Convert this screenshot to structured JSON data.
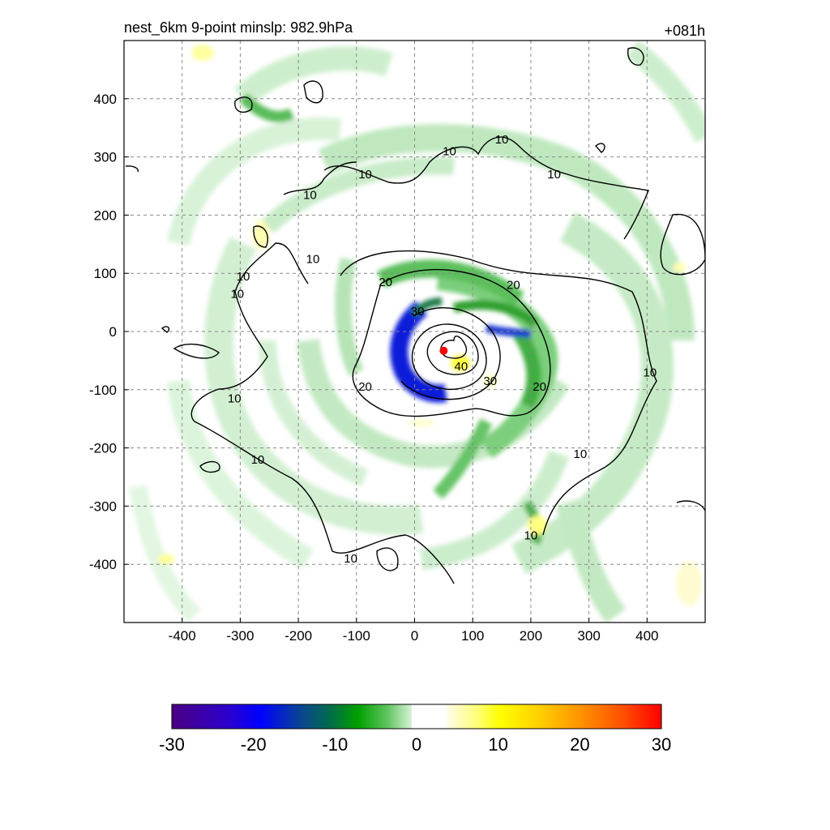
{
  "header": {
    "title": "nest_6km  9-point minslp: 982.9hPa",
    "forecast_hour": "+081h"
  },
  "chart_data": {
    "type": "heatmap",
    "title": "nest_6km  9-point minslp: 982.9hPa",
    "xlabel": "",
    "ylabel": "",
    "xlim": [
      -500,
      500
    ],
    "ylim": [
      -500,
      500
    ],
    "x_ticks": [
      -400,
      -300,
      -200,
      -100,
      0,
      100,
      200,
      300,
      400
    ],
    "y_ticks": [
      400,
      300,
      200,
      100,
      0,
      -100,
      -200,
      -300,
      -400
    ],
    "x_tick_labels": [
      "-400",
      "-300",
      "-200",
      "-100",
      "0",
      "100",
      "200",
      "300",
      "400"
    ],
    "y_tick_labels": [
      "400",
      "300",
      "200",
      "100",
      "0",
      "-100",
      "-200",
      "-300",
      "-400"
    ],
    "grid": true,
    "storm_center": [
      50,
      -33
    ],
    "contour_labels": [
      {
        "text": "10",
        "x": -180,
        "y": 235
      },
      {
        "text": "10",
        "x": -85,
        "y": 270
      },
      {
        "text": "10",
        "x": 60,
        "y": 310
      },
      {
        "text": "10",
        "x": 150,
        "y": 330
      },
      {
        "text": "10",
        "x": 240,
        "y": 270
      },
      {
        "text": "10",
        "x": -175,
        "y": 125
      },
      {
        "text": "10",
        "x": -295,
        "y": 95
      },
      {
        "text": "10",
        "x": -305,
        "y": 65
      },
      {
        "text": "10",
        "x": -310,
        "y": -115
      },
      {
        "text": "10",
        "x": -270,
        "y": -220
      },
      {
        "text": "10",
        "x": 405,
        "y": -70
      },
      {
        "text": "10",
        "x": 285,
        "y": -210
      },
      {
        "text": "10",
        "x": -110,
        "y": -390
      },
      {
        "text": "10",
        "x": 200,
        "y": -350
      },
      {
        "text": "20",
        "x": -50,
        "y": 85
      },
      {
        "text": "20",
        "x": 170,
        "y": 80
      },
      {
        "text": "20",
        "x": 215,
        "y": -95
      },
      {
        "text": "20",
        "x": -85,
        "y": -95
      },
      {
        "text": "30",
        "x": 5,
        "y": 35
      },
      {
        "text": "30",
        "x": 130,
        "y": -85
      },
      {
        "text": "40",
        "x": 80,
        "y": -60
      }
    ],
    "colorbar": {
      "min": -30,
      "max": 30,
      "tick_labels": [
        "-30",
        "-20",
        "-10",
        "0",
        "10",
        "20",
        "30"
      ],
      "colors": [
        "#4b0082",
        "#0000ff",
        "#006a4e",
        "#00a000",
        "#5fc45f",
        "#c0ebc0",
        "#ffffff",
        "#ffffc0",
        "#ffff00",
        "#ffb400",
        "#ff6400",
        "#ff0000"
      ]
    }
  }
}
